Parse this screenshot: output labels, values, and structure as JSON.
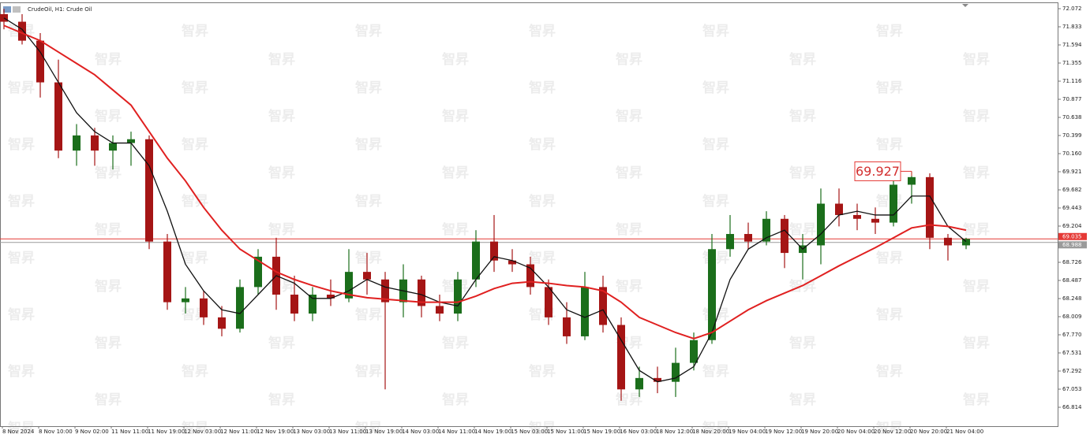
{
  "chart_data": {
    "type": "candlestick",
    "title": "CrudeOil, H1:  Crude Oil",
    "watermark": "智昇",
    "categories": [
      "8 Nov 2024",
      null,
      "8 Nov 10:00",
      null,
      "9 Nov 02:00",
      null,
      "11 Nov 11:00",
      null,
      "11 Nov 19:00",
      null,
      "12 Nov 03:00",
      null,
      "12 Nov 11:00",
      null,
      "12 Nov 19:00",
      null,
      "13 Nov 03:00",
      null,
      "13 Nov 11:00",
      null,
      "13 Nov 19:00",
      null,
      "14 Nov 03:00",
      null,
      "14 Nov 11:00",
      null,
      "14 Nov 19:00",
      null,
      "15 Nov 03:00",
      null,
      "15 Nov 11:00",
      null,
      "15 Nov 19:00",
      null,
      "16 Nov 03:00",
      null,
      "18 Nov 12:00",
      null,
      "18 Nov 20:00",
      null,
      "19 Nov 04:00",
      null,
      "19 Nov 12:00",
      null,
      "19 Nov 20:00",
      null,
      "20 Nov 04:00",
      null,
      "20 Nov 12:00",
      null,
      "20 Nov 20:00",
      null,
      "21 Nov 04:00",
      null
    ],
    "open": [
      72.0,
      71.9,
      71.65,
      71.1,
      70.2,
      70.4,
      70.2,
      70.3,
      70.35,
      69.0,
      68.2,
      68.25,
      68.0,
      67.85,
      68.4,
      68.8,
      68.3,
      68.05,
      68.3,
      68.25,
      68.6,
      68.5,
      68.2,
      68.5,
      68.15,
      68.05,
      68.5,
      69.0,
      68.75,
      68.7,
      68.4,
      68.0,
      67.75,
      68.4,
      67.9,
      67.05,
      67.2,
      67.15,
      67.4,
      67.7,
      68.9,
      69.1,
      69.0,
      69.3,
      68.85,
      68.95,
      69.5,
      69.35,
      69.3,
      69.25,
      69.75,
      69.85,
      69.05,
      68.95
    ],
    "high": [
      72.07,
      72.0,
      71.75,
      71.4,
      70.55,
      70.5,
      70.4,
      70.45,
      70.4,
      69.1,
      68.4,
      68.35,
      68.15,
      68.5,
      68.9,
      69.05,
      68.55,
      68.4,
      68.5,
      68.9,
      68.85,
      68.6,
      68.7,
      68.55,
      68.3,
      68.6,
      69.15,
      69.35,
      68.9,
      68.8,
      68.5,
      68.2,
      68.6,
      68.55,
      68.0,
      67.35,
      67.35,
      67.6,
      67.8,
      69.1,
      69.35,
      69.25,
      69.4,
      69.35,
      69.1,
      69.7,
      69.7,
      69.5,
      69.45,
      69.85,
      69.927,
      69.9,
      69.1,
      69.05
    ],
    "low": [
      71.8,
      71.6,
      70.9,
      70.1,
      70.0,
      70.0,
      69.95,
      70.0,
      68.9,
      68.1,
      68.05,
      67.9,
      67.75,
      67.8,
      68.3,
      68.1,
      67.95,
      67.95,
      68.15,
      68.2,
      68.3,
      67.05,
      68.0,
      68.0,
      67.95,
      67.95,
      68.4,
      68.6,
      68.6,
      68.3,
      67.9,
      67.65,
      67.7,
      67.8,
      66.9,
      66.95,
      67.0,
      66.95,
      67.3,
      67.65,
      68.8,
      68.9,
      68.95,
      68.65,
      68.5,
      68.7,
      69.2,
      69.15,
      69.1,
      69.2,
      69.5,
      68.9,
      68.75,
      68.9
    ],
    "close": [
      71.9,
      71.65,
      71.1,
      70.2,
      70.4,
      70.2,
      70.3,
      70.35,
      69.0,
      68.2,
      68.25,
      68.0,
      67.85,
      68.4,
      68.8,
      68.3,
      68.05,
      68.3,
      68.25,
      68.6,
      68.5,
      68.2,
      68.5,
      68.15,
      68.05,
      68.5,
      69.0,
      68.75,
      68.7,
      68.4,
      68.0,
      67.75,
      68.4,
      67.9,
      67.05,
      67.2,
      67.15,
      67.4,
      67.7,
      68.9,
      69.1,
      69.0,
      69.3,
      68.85,
      68.95,
      69.5,
      69.35,
      69.3,
      69.25,
      69.75,
      69.85,
      69.05,
      68.95,
      69.035
    ],
    "up_color": "#1b6e1b",
    "down_color": "#a51515",
    "series": [
      {
        "color": "#111111",
        "values": [
          71.95,
          71.8,
          71.5,
          71.1,
          70.7,
          70.45,
          70.3,
          70.3,
          70.0,
          69.4,
          68.7,
          68.35,
          68.1,
          68.05,
          68.3,
          68.55,
          68.45,
          68.25,
          68.25,
          68.35,
          68.5,
          68.4,
          68.35,
          68.3,
          68.2,
          68.15,
          68.5,
          68.8,
          68.75,
          68.65,
          68.4,
          68.1,
          68.0,
          68.1,
          67.7,
          67.3,
          67.15,
          67.2,
          67.35,
          67.8,
          68.5,
          68.9,
          69.05,
          69.15,
          68.9,
          69.1,
          69.35,
          69.4,
          69.35,
          69.35,
          69.6,
          69.6,
          69.2,
          69.0
        ]
      },
      {
        "color": "#e02020",
        "values": [
          71.85,
          71.75,
          71.65,
          71.5,
          71.35,
          71.2,
          71.0,
          70.8,
          70.45,
          70.1,
          69.8,
          69.45,
          69.15,
          68.9,
          68.75,
          68.6,
          68.5,
          68.42,
          68.35,
          68.3,
          68.26,
          68.24,
          68.22,
          68.2,
          68.2,
          68.2,
          68.28,
          68.38,
          68.45,
          68.47,
          68.45,
          68.42,
          68.4,
          68.35,
          68.2,
          68.0,
          67.9,
          67.8,
          67.72,
          67.8,
          67.95,
          68.1,
          68.22,
          68.32,
          68.42,
          68.55,
          68.68,
          68.8,
          68.92,
          69.05,
          69.18,
          69.22,
          69.2,
          69.15
        ]
      }
    ],
    "price_lines": [
      {
        "value": 68.988,
        "color": "#9a9a9a"
      },
      {
        "value": 69.035,
        "color": "#e53935"
      }
    ],
    "callout": 69.927,
    "ylim": [
      66.575,
      72.145
    ],
    "yticks": [
      72.072,
      71.833,
      71.594,
      71.355,
      71.116,
      70.877,
      70.638,
      70.399,
      {
        "value": 70.16,
        "label": "70.160"
      },
      69.921,
      69.682,
      69.443,
      69.204,
      68.726,
      68.487,
      68.248,
      68.009,
      {
        "value": 67.77,
        "label": "67.770"
      },
      67.531,
      67.292,
      67.053,
      66.814
    ],
    "grid": false
  }
}
